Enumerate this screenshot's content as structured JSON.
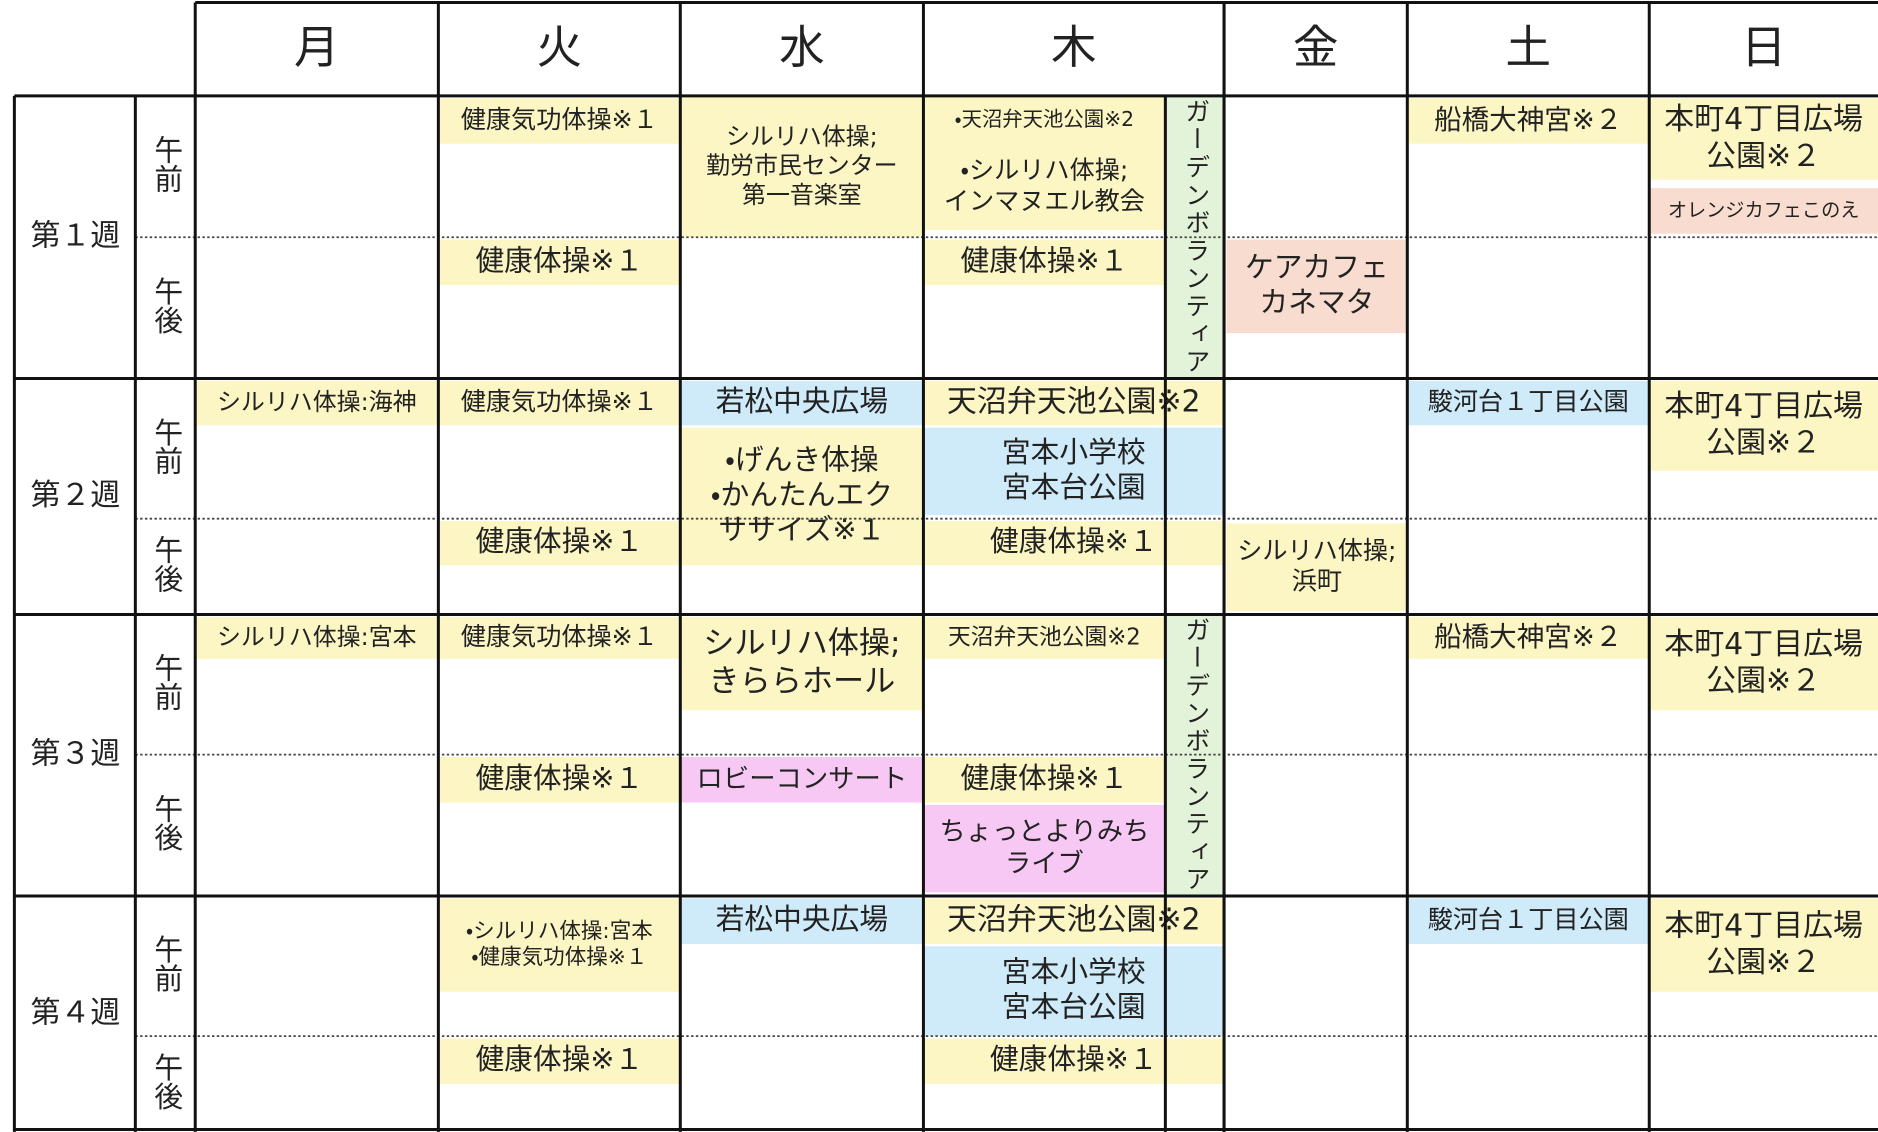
{
  "header": {
    "days": [
      "月",
      "火",
      "水",
      "木",
      "金",
      "土",
      "日"
    ]
  },
  "weeks": [
    {
      "label": "第１週"
    },
    {
      "label": "第２週"
    },
    {
      "label": "第３週"
    },
    {
      "label": "第４週"
    }
  ],
  "periods": [
    "午前",
    "午後"
  ],
  "events": [
    {
      "lines": [
        "健康気功体操※１"
      ]
    },
    {
      "lines": [
        "シルリハ体操;",
        "勤労市民センター",
        "第一音楽室"
      ]
    },
    {
      "lines": [
        "・天沼弁天池公園※2"
      ]
    },
    {
      "lines": [
        "・シルリハ体操;",
        "インマヌエル教会"
      ]
    },
    {
      "lines": [
        "ガーデンボランティア"
      ]
    },
    {
      "lines": [
        "船橋大神宮※２"
      ]
    },
    {
      "lines": [
        "本町4丁目広場",
        "公園※２"
      ]
    },
    {
      "lines": [
        "オレンジカフェこのえ"
      ]
    },
    {
      "lines": [
        "健康体操※１"
      ]
    },
    {
      "lines": [
        "健康体操※１"
      ]
    },
    {
      "lines": [
        "ケアカフェ",
        "カネマタ"
      ]
    },
    {
      "lines": [
        "シルリハ体操:海神"
      ]
    },
    {
      "lines": [
        "健康気功体操※１"
      ]
    },
    {
      "lines": [
        "若松中央広場"
      ]
    },
    {
      "lines": [
        "・げんき体操",
        "・かんたんエク",
        "ササイズ※１"
      ]
    },
    {
      "lines": [
        "天沼弁天池公園※2"
      ]
    },
    {
      "lines": [
        "宮本小学校",
        "宮本台公園"
      ]
    },
    {
      "lines": [
        "駿河台１丁目公園"
      ]
    },
    {
      "lines": [
        "本町4丁目広場",
        "公園※２"
      ]
    },
    {
      "lines": [
        "健康体操※１"
      ]
    },
    {
      "lines": [
        "健康体操※１"
      ]
    },
    {
      "lines": [
        "シルリハ体操;",
        "浜町"
      ]
    },
    {
      "lines": [
        "シルリハ体操:宮本"
      ]
    },
    {
      "lines": [
        "健康気功体操※１"
      ]
    },
    {
      "lines": [
        "シルリハ体操;",
        "きららホール"
      ]
    },
    {
      "lines": [
        "天沼弁天池公園※2"
      ]
    },
    {
      "lines": [
        "ガーデンボランティア"
      ]
    },
    {
      "lines": [
        "船橋大神宮※２"
      ]
    },
    {
      "lines": [
        "本町4丁目広場",
        "公園※２"
      ]
    },
    {
      "lines": [
        "健康体操※１"
      ]
    },
    {
      "lines": [
        "ロビーコンサート"
      ]
    },
    {
      "lines": [
        "健康体操※１"
      ]
    },
    {
      "lines": [
        "ちょっとよりみち",
        "ライブ"
      ]
    },
    {
      "lines": [
        "・シルリハ体操:宮本",
        "・健康気功体操※１"
      ]
    },
    {
      "lines": [
        "若松中央広場"
      ]
    },
    {
      "lines": [
        "天沼弁天池公園※2"
      ]
    },
    {
      "lines": [
        "宮本小学校",
        "宮本台公園"
      ]
    },
    {
      "lines": [
        "駿河台１丁目公園"
      ]
    },
    {
      "lines": [
        "本町4丁目広場",
        "公園※２"
      ]
    },
    {
      "lines": [
        "健康体操※１"
      ]
    },
    {
      "lines": [
        "健康体操※１"
      ]
    }
  ]
}
